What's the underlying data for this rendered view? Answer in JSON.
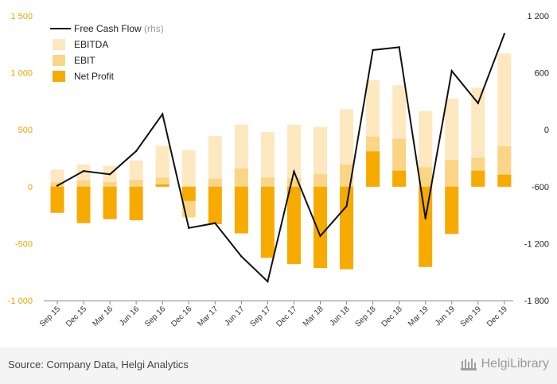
{
  "chart_data": {
    "type": "bar+line",
    "categories": [
      "Sep 15",
      "Dec 15",
      "Mar 16",
      "Jun 16",
      "Sep 16",
      "Dec 16",
      "Mar 17",
      "Jun 17",
      "Sep 17",
      "Dec 17",
      "Mar 18",
      "Jun 18",
      "Sep 18",
      "Dec 18",
      "Mar 19",
      "Jun 19",
      "Sep 19",
      "Dec 19"
    ],
    "series": [
      {
        "name": "EBITDA",
        "axis": "left",
        "kind": "bar",
        "color": "#fde8c0",
        "values": [
          150,
          195,
          185,
          230,
          360,
          320,
          445,
          545,
          480,
          545,
          525,
          680,
          935,
          890,
          665,
          775,
          870,
          1170
        ]
      },
      {
        "name": "EBIT",
        "axis": "left",
        "kind": "bar",
        "color": "#fbd586",
        "values": [
          40,
          55,
          40,
          60,
          80,
          -270,
          70,
          160,
          80,
          75,
          110,
          195,
          440,
          420,
          170,
          235,
          255,
          355
        ]
      },
      {
        "name": "Net Profit",
        "axis": "left",
        "kind": "bar",
        "color": "#f7aa00",
        "values": [
          -230,
          -320,
          -285,
          -295,
          20,
          -125,
          -330,
          -410,
          -625,
          -680,
          -715,
          -725,
          310,
          140,
          -705,
          -415,
          140,
          105
        ]
      },
      {
        "name": "Free Cash Flow",
        "suffix": "(rhs)",
        "axis": "right",
        "kind": "line",
        "color": "#111111",
        "values": [
          -590,
          -435,
          -470,
          -225,
          165,
          -1035,
          -985,
          -1335,
          -1600,
          -440,
          -1120,
          -805,
          840,
          870,
          -935,
          620,
          280,
          1010
        ]
      }
    ],
    "left_axis": {
      "range": [
        -1000,
        1500
      ],
      "ticks": [
        1500,
        1000,
        500,
        0,
        -500,
        -1000
      ],
      "tick_labels": [
        "1 500",
        "1 000",
        "500",
        "0",
        "-500",
        "-1 000"
      ]
    },
    "right_axis": {
      "range": [
        -1800,
        1200
      ],
      "ticks": [
        1200,
        600,
        0,
        -600,
        -1200,
        -1800
      ],
      "tick_labels": [
        "1 200",
        "600",
        "0",
        "-600",
        "-1 200",
        "-1 800"
      ]
    },
    "legend": {
      "position": "top-left",
      "items": [
        "Free Cash Flow",
        "EBITDA",
        "EBIT",
        "Net Profit"
      ],
      "rhs_suffix": "(rhs)"
    },
    "grid": false
  },
  "footer": {
    "source": "Source: Company Data, Helgi Analytics",
    "brand_text": "HelgiLibrary"
  },
  "colors": {
    "left_tick": "#f2a500",
    "right_tick": "#222222",
    "footer_bg": "#f4f4f4"
  }
}
